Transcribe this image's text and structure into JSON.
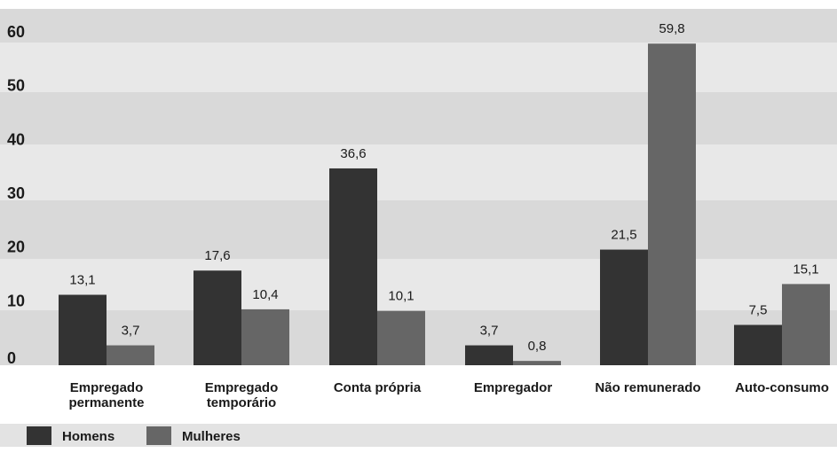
{
  "chart_data": {
    "type": "bar",
    "categories": [
      [
        "Empregado",
        "permanente"
      ],
      [
        "Empregado",
        "temporário"
      ],
      [
        "Conta própria"
      ],
      [
        "Empregador"
      ],
      [
        "Não remunerado"
      ],
      [
        "Auto-consumo"
      ]
    ],
    "series": [
      {
        "name": "Homens",
        "values": [
          13.1,
          17.6,
          36.6,
          3.7,
          21.5,
          7.5
        ],
        "labels": [
          "13,1",
          "17,6",
          "36,6",
          "3,7",
          "21,5",
          "7,5"
        ],
        "color": "#333333"
      },
      {
        "name": "Mulheres",
        "values": [
          3.7,
          10.4,
          10.1,
          0.8,
          59.8,
          15.1
        ],
        "labels": [
          "3,7",
          "10,4",
          "10,1",
          "0,8",
          "59,8",
          "15,1"
        ],
        "color": "#666666"
      }
    ],
    "ylim": [
      0,
      60
    ],
    "yticks": [
      0,
      10,
      20,
      30,
      40,
      50,
      60
    ],
    "grid": "alternating horizontal bands",
    "band_colors": [
      "#d9d9d9",
      "#e8e8e8"
    ],
    "legend_placement": "bottom-left"
  }
}
